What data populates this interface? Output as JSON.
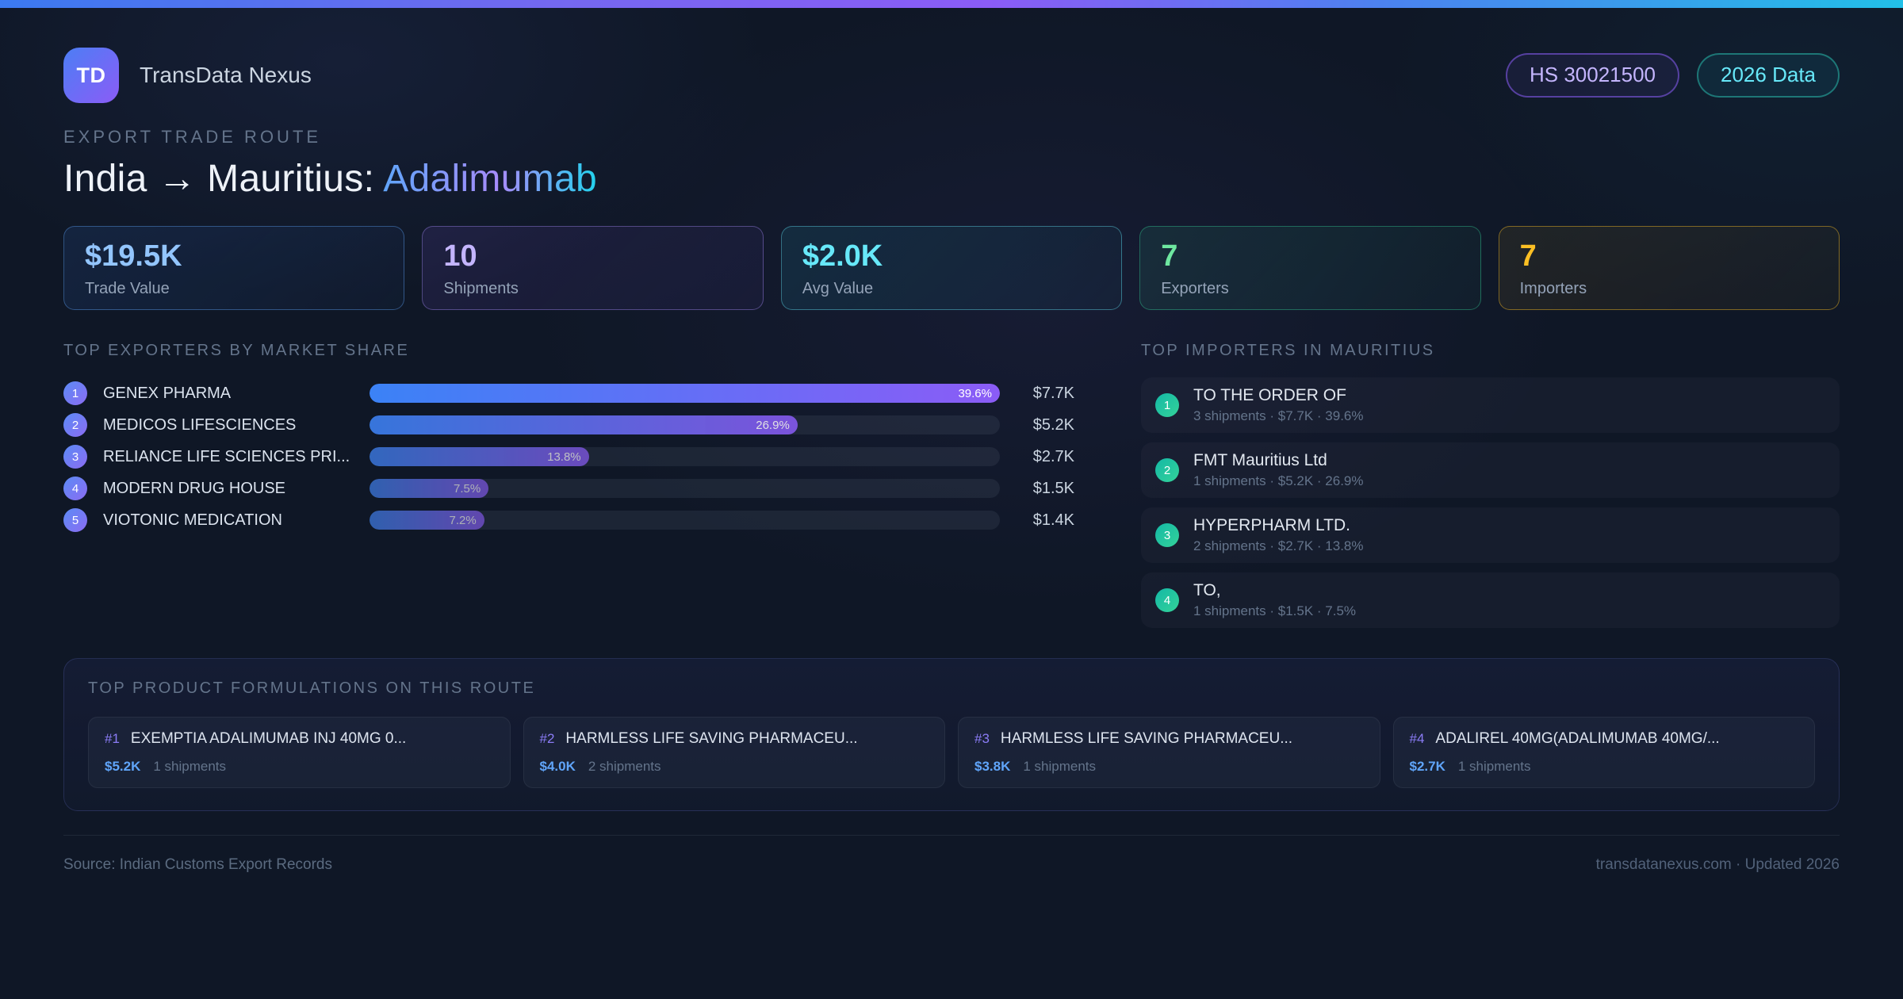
{
  "header": {
    "logo": "TD",
    "brand": "TransData Nexus",
    "badges": [
      {
        "label": "HS 30021500",
        "accent": "#c4b5fd"
      },
      {
        "label": "2026 Data",
        "accent": "#67e8f9"
      }
    ]
  },
  "hero": {
    "eyebrow": "EXPORT TRADE ROUTE",
    "route": "India → Mauritius: ",
    "product": "Adalimumab"
  },
  "stats": [
    {
      "value": "$19.5K",
      "label": "Trade Value",
      "accent": "#93c5fd"
    },
    {
      "value": "10",
      "label": "Shipments",
      "accent": "#c4b5fd"
    },
    {
      "value": "$2.0K",
      "label": "Avg Value",
      "accent": "#67e8f9"
    },
    {
      "value": "7",
      "label": "Exporters",
      "accent": "#6ee7a0"
    },
    {
      "value": "7",
      "label": "Importers",
      "accent": "#fbbf24"
    }
  ],
  "exporters": {
    "heading": "TOP EXPORTERS BY MARKET SHARE",
    "rows": [
      {
        "rank": "1",
        "name": "GENEX PHARMA",
        "share_pct": 39.6,
        "share_label": "39.6%",
        "value": "$7.7K"
      },
      {
        "rank": "2",
        "name": "MEDICOS LIFESCIENCES",
        "share_pct": 26.9,
        "share_label": "26.9%",
        "value": "$5.2K"
      },
      {
        "rank": "3",
        "name": "RELIANCE LIFE SCIENCES PRI...",
        "share_pct": 13.8,
        "share_label": "13.8%",
        "value": "$2.7K"
      },
      {
        "rank": "4",
        "name": "MODERN DRUG HOUSE",
        "share_pct": 7.5,
        "share_label": "7.5%",
        "value": "$1.5K"
      },
      {
        "rank": "5",
        "name": "VIOTONIC MEDICATION",
        "share_pct": 7.2,
        "share_label": "7.2%",
        "value": "$1.4K"
      }
    ]
  },
  "importers": {
    "heading": "TOP IMPORTERS IN MAURITIUS",
    "rows": [
      {
        "rank": "1",
        "name": "TO THE ORDER OF",
        "meta": "3 shipments · $7.7K · 39.6%"
      },
      {
        "rank": "2",
        "name": "FMT Mauritius Ltd",
        "meta": "1 shipments · $5.2K · 26.9%"
      },
      {
        "rank": "3",
        "name": "HYPERPHARM LTD.",
        "meta": "2 shipments · $2.7K · 13.8%"
      },
      {
        "rank": "4",
        "name": "TO,",
        "meta": "1 shipments · $1.5K · 7.5%"
      }
    ]
  },
  "formulations": {
    "heading": "TOP PRODUCT FORMULATIONS ON THIS ROUTE",
    "cards": [
      {
        "rank": "#1",
        "name": "EXEMPTIA ADALIMUMAB INJ 40MG 0...",
        "value": "$5.2K",
        "shipments": "1 shipments"
      },
      {
        "rank": "#2",
        "name": "HARMLESS LIFE SAVING PHARMACEU...",
        "value": "$4.0K",
        "shipments": "2 shipments"
      },
      {
        "rank": "#3",
        "name": "HARMLESS LIFE SAVING PHARMACEU...",
        "value": "$3.8K",
        "shipments": "1 shipments"
      },
      {
        "rank": "#4",
        "name": "ADALIREL 40MG(ADALIMUMAB 40MG/...",
        "value": "$2.7K",
        "shipments": "1 shipments"
      }
    ]
  },
  "footer": {
    "source": "Source: Indian Customs Export Records",
    "site": "transdatanexus.com · Updated 2026"
  },
  "theme": {
    "topbar_gradient": [
      "#3b7af0",
      "#8b5cf6",
      "#22c0e8"
    ],
    "bar_gradient": [
      "#3b82f6",
      "#8b5cf6"
    ],
    "importer_badge_gradient": [
      "#14b8a6",
      "#34d399"
    ]
  }
}
